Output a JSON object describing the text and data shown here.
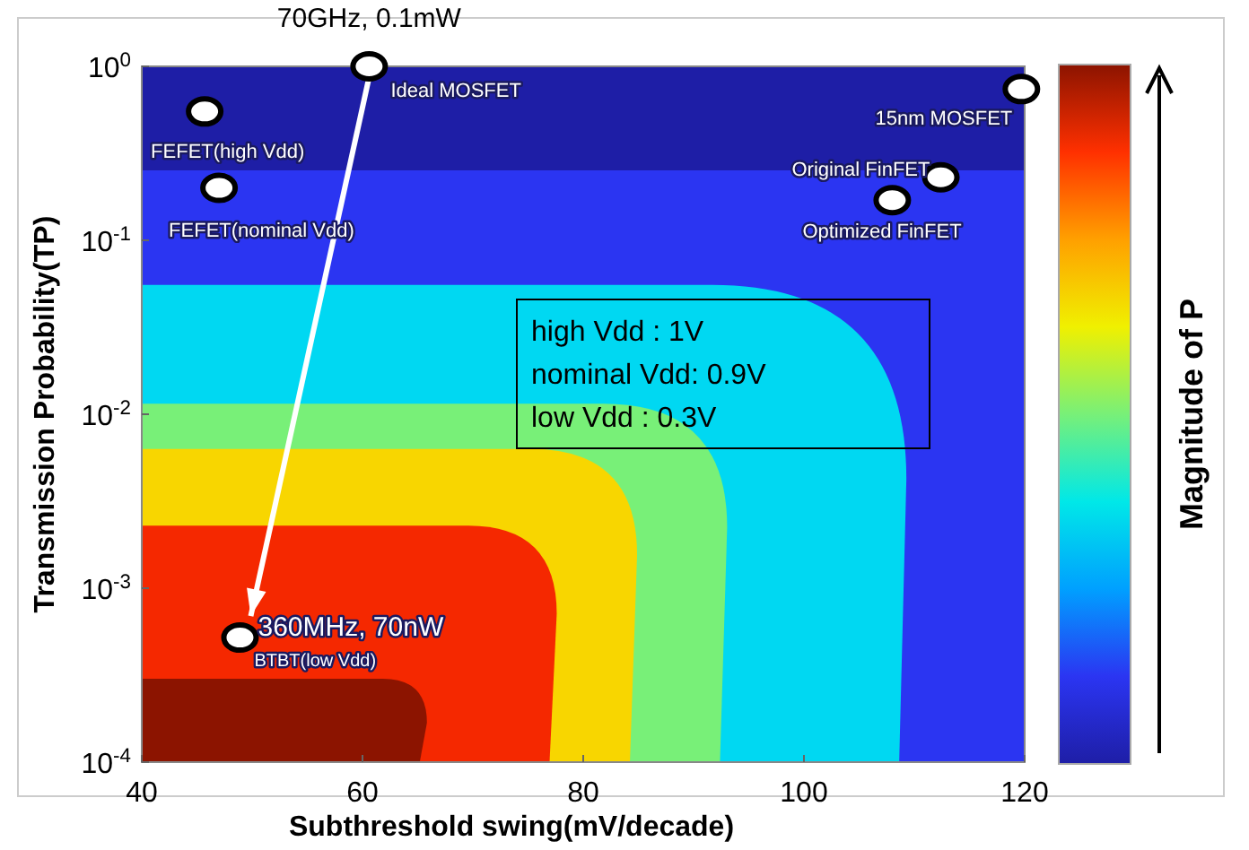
{
  "chart_data": {
    "type": "scatter",
    "xlabel": "Subthreshold swing(mV/decade)",
    "ylabel": "Transmission Probability(TP)",
    "clabel": "Magnitude of P",
    "series": [
      {
        "color": "#ffffff",
        "x": [
          60.6,
          45.7,
          47,
          119.7,
          112.4,
          108,
          48.9
        ],
        "values": [
          1,
          0.55,
          0.2,
          0.74,
          0.23,
          0.17,
          0.00052
        ]
      }
    ],
    "xlim": [
      40,
      120
    ],
    "xticks": [
      40,
      60,
      80,
      100,
      120
    ],
    "ylim": [
      0.0001,
      1
    ],
    "yticks": [
      {
        "value": 0.0001,
        "label": "10$^{-4}$"
      },
      {
        "value": 0.001,
        "label": "10$^{-3}$"
      },
      {
        "value": 0.01,
        "label": "10$^{-2}$"
      },
      {
        "value": 0.1,
        "label": "10$^{-1}$"
      },
      {
        "value": 1,
        "label": "10$^{0}$"
      }
    ],
    "log": "y",
    "grid": false,
    "marker": "circle",
    "annotations": [
      {
        "text": "Ideal MOSFET",
        "x": 60.6,
        "y": 1
      },
      {
        "text": "70GHz, 0.1mW",
        "x": 60.6,
        "y": 1
      },
      {
        "text": "FEFET(high Vdd)",
        "x": 45.7,
        "y": 0.55
      },
      {
        "text": "FEFET(nominal Vdd)",
        "x": 47,
        "y": 0.2
      },
      {
        "text": "15nm MOSFET",
        "x": 119.7,
        "y": 0.74
      },
      {
        "text": "Original FinFET",
        "x": 112.4,
        "y": 0.23
      },
      {
        "text": "Optimized FinFET",
        "x": 108,
        "y": 0.17
      },
      {
        "text": "BTBT(low Vdd)",
        "x": 48.9,
        "y": 0.00052
      },
      {
        "text": "360MHz, 70nW",
        "x": 48.9,
        "y": 0.00052
      },
      "high Vdd : 1V",
      "nominal Vdd: 0.9V",
      "low Vdd : 0.3V"
    ]
  }
}
